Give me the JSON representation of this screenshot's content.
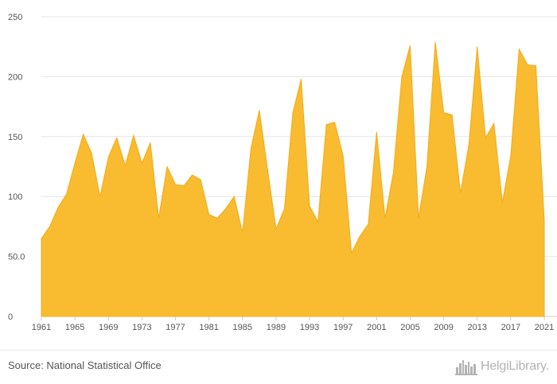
{
  "chart_data": {
    "type": "area",
    "color": "#f9bb2f",
    "stroke_color": "#f0ad1c",
    "grid": true,
    "ylim": [
      0,
      250
    ],
    "y_ticks": [
      0,
      50,
      100,
      150,
      200,
      250
    ],
    "y_tick_labels": [
      "0",
      "50.0",
      "100",
      "150",
      "200",
      "250"
    ],
    "x_ticks": [
      1961,
      1965,
      1969,
      1973,
      1977,
      1981,
      1985,
      1989,
      1993,
      1997,
      2001,
      2005,
      2009,
      2013,
      2017,
      2021
    ],
    "xlim": [
      1961,
      2021
    ],
    "x": [
      1961,
      1962,
      1963,
      1964,
      1965,
      1966,
      1967,
      1968,
      1969,
      1970,
      1971,
      1972,
      1973,
      1974,
      1975,
      1976,
      1977,
      1978,
      1979,
      1980,
      1981,
      1982,
      1983,
      1984,
      1985,
      1986,
      1987,
      1988,
      1989,
      1990,
      1991,
      1992,
      1993,
      1994,
      1995,
      1996,
      1997,
      1998,
      1999,
      2000,
      2001,
      2002,
      2003,
      2004,
      2005,
      2006,
      2007,
      2008,
      2009,
      2010,
      2011,
      2012,
      2013,
      2014,
      2015,
      2016,
      2017,
      2018,
      2019,
      2020,
      2021
    ],
    "values": [
      65,
      75,
      91,
      102,
      128,
      152,
      136,
      100,
      133,
      149,
      126,
      151,
      128,
      145,
      82,
      125,
      110,
      109,
      118,
      114,
      85,
      82,
      90,
      100,
      70,
      140,
      172,
      122,
      73,
      90,
      170,
      198,
      92,
      79,
      160,
      162,
      134,
      53,
      67,
      77,
      154,
      82,
      120,
      200,
      226,
      82,
      125,
      229,
      170,
      168,
      103,
      143,
      225,
      149,
      161,
      95,
      134,
      223,
      210,
      209,
      80
    ]
  },
  "footer": {
    "source": "Source: National Statistical Office",
    "brand": "HelgiLibrary."
  },
  "icons": {
    "brand_logo": "city-skyline-icon"
  }
}
